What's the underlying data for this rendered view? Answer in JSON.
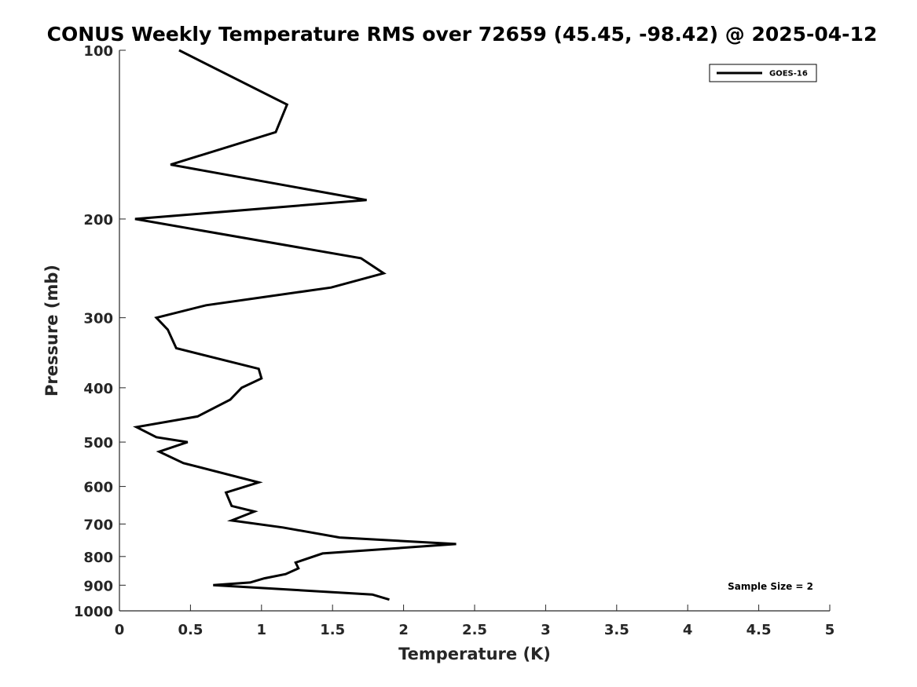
{
  "chart_data": {
    "type": "line",
    "title": "CONUS Weekly Temperature RMS over 72659 (45.45, -98.42) @ 2025-04-12",
    "xlabel": "Temperature (K)",
    "ylabel": "Pressure (mb)",
    "xlim": [
      0,
      5
    ],
    "ylim": [
      1000,
      100
    ],
    "yscale": "log",
    "y_reversed": true,
    "grid": false,
    "legend_position": "top-right",
    "x_ticks": [
      "0",
      "0.5",
      "1",
      "1.5",
      "2",
      "2.5",
      "3",
      "3.5",
      "4",
      "4.5",
      "5"
    ],
    "x_tick_values": [
      0,
      0.5,
      1,
      1.5,
      2,
      2.5,
      3,
      3.5,
      4,
      4.5,
      5
    ],
    "y_ticks": [
      "100",
      "200",
      "300",
      "400",
      "500",
      "600",
      "700",
      "800",
      "900",
      "1000"
    ],
    "y_tick_values": [
      100,
      200,
      300,
      400,
      500,
      600,
      700,
      800,
      900,
      1000
    ],
    "series": [
      {
        "name": "GOES-16",
        "color": "#000000",
        "x": [
          0.42,
          1.18,
          1.1,
          0.36,
          1.74,
          0.11,
          1.7,
          1.86,
          1.49,
          0.61,
          0.26,
          0.34,
          0.4,
          0.98,
          1.0,
          0.86,
          0.78,
          0.55,
          0.12,
          0.26,
          0.48,
          0.28,
          0.45,
          0.98,
          0.75,
          0.79,
          0.95,
          0.79,
          1.15,
          1.55,
          2.37,
          1.43,
          1.24,
          1.26,
          1.17,
          1.02,
          0.92,
          0.66,
          1.78,
          1.9
        ],
        "y": [
          100,
          125,
          140,
          160,
          185,
          200,
          235,
          250,
          265,
          285,
          300,
          315,
          340,
          370,
          385,
          400,
          420,
          450,
          470,
          490,
          500,
          520,
          545,
          590,
          615,
          650,
          665,
          690,
          710,
          740,
          760,
          790,
          820,
          840,
          860,
          875,
          890,
          900,
          935,
          955
        ]
      }
    ],
    "annotations": [
      "Sample Size = 2"
    ]
  }
}
